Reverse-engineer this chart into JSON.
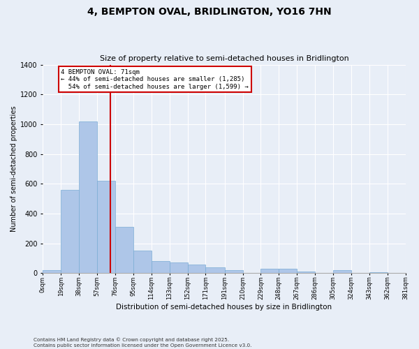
{
  "title": "4, BEMPTON OVAL, BRIDLINGTON, YO16 7HN",
  "subtitle": "Size of property relative to semi-detached houses in Bridlington",
  "xlabel": "Distribution of semi-detached houses by size in Bridlington",
  "ylabel": "Number of semi-detached properties",
  "footer": "Contains HM Land Registry data © Crown copyright and database right 2025.\nContains public sector information licensed under the Open Government Licence v3.0.",
  "bins": [
    0,
    19,
    38,
    57,
    76,
    95,
    114,
    133,
    152,
    171,
    191,
    210,
    229,
    248,
    267,
    286,
    305,
    324,
    343,
    362,
    381
  ],
  "bin_labels": [
    "0sqm",
    "19sqm",
    "38sqm",
    "57sqm",
    "76sqm",
    "95sqm",
    "114sqm",
    "133sqm",
    "152sqm",
    "171sqm",
    "191sqm",
    "210sqm",
    "229sqm",
    "248sqm",
    "267sqm",
    "286sqm",
    "305sqm",
    "324sqm",
    "343sqm",
    "362sqm",
    "381sqm"
  ],
  "values": [
    20,
    560,
    1020,
    620,
    310,
    150,
    80,
    70,
    60,
    40,
    20,
    0,
    30,
    30,
    10,
    0,
    20,
    0,
    5,
    0,
    0
  ],
  "bar_color": "#aec6e8",
  "bar_edge_color": "#7aacd4",
  "property_size": 71,
  "property_label": "4 BEMPTON OVAL: 71sqm",
  "pct_smaller": 44,
  "n_smaller": 1285,
  "pct_larger": 54,
  "n_larger": 1599,
  "vline_color": "#cc0000",
  "annotation_box_color": "#cc0000",
  "bg_color": "#e8eef7",
  "ylim": [
    0,
    1400
  ],
  "yticks": [
    0,
    200,
    400,
    600,
    800,
    1000,
    1200,
    1400
  ]
}
